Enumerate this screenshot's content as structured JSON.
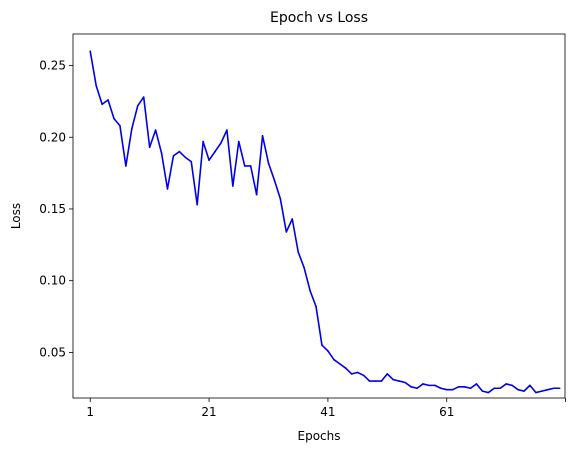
{
  "chart_data": {
    "type": "line",
    "title": "Epoch vs Loss",
    "xlabel": "Epochs",
    "ylabel": "Loss",
    "xlim": [
      -1.9,
      80.9
    ],
    "ylim": [
      0.0182,
      0.272
    ],
    "x_ticks": [
      {
        "value": 1,
        "label": "1"
      },
      {
        "value": 21,
        "label": "21"
      },
      {
        "value": 41,
        "label": "41"
      },
      {
        "value": 61,
        "label": "61"
      },
      {
        "value": 81,
        "label": ""
      }
    ],
    "y_ticks": [
      {
        "value": 0.05,
        "label": "0.05"
      },
      {
        "value": 0.1,
        "label": "0.10"
      },
      {
        "value": 0.15,
        "label": "0.15"
      },
      {
        "value": 0.2,
        "label": "0.20"
      },
      {
        "value": 0.25,
        "label": "0.25"
      }
    ],
    "grid": false,
    "legend": null,
    "series": [
      {
        "color": "#0000ee",
        "x": [
          1,
          2,
          3,
          4,
          5,
          6,
          7,
          8,
          9,
          10,
          11,
          12,
          13,
          14,
          15,
          16,
          17,
          18,
          19,
          20,
          21,
          22,
          23,
          24,
          25,
          26,
          27,
          28,
          29,
          30,
          31,
          32,
          33,
          34,
          35,
          36,
          37,
          38,
          39,
          40,
          41,
          42,
          43,
          44,
          45,
          46,
          47,
          48,
          49,
          50,
          51,
          52,
          53,
          54,
          55,
          56,
          57,
          58,
          59,
          60,
          61,
          62,
          63,
          64,
          65,
          66,
          67,
          68,
          69,
          70,
          71,
          72,
          73,
          74,
          75,
          76,
          77,
          78,
          79,
          80
        ],
        "values": [
          0.26,
          0.236,
          0.223,
          0.226,
          0.213,
          0.208,
          0.18,
          0.206,
          0.222,
          0.228,
          0.193,
          0.205,
          0.189,
          0.164,
          0.187,
          0.19,
          0.186,
          0.183,
          0.153,
          0.197,
          0.184,
          0.19,
          0.196,
          0.205,
          0.166,
          0.197,
          0.18,
          0.18,
          0.16,
          0.201,
          0.182,
          0.17,
          0.157,
          0.134,
          0.143,
          0.12,
          0.109,
          0.093,
          0.082,
          0.055,
          0.051,
          0.045,
          0.042,
          0.039,
          0.035,
          0.036,
          0.034,
          0.03,
          0.03,
          0.03,
          0.035,
          0.031,
          0.03,
          0.029,
          0.026,
          0.025,
          0.028,
          0.027,
          0.027,
          0.025,
          0.024,
          0.024,
          0.026,
          0.026,
          0.025,
          0.028,
          0.023,
          0.022,
          0.025,
          0.025,
          0.028,
          0.027,
          0.024,
          0.023,
          0.027,
          0.022,
          0.023,
          0.024,
          0.025,
          0.025
        ]
      }
    ]
  }
}
